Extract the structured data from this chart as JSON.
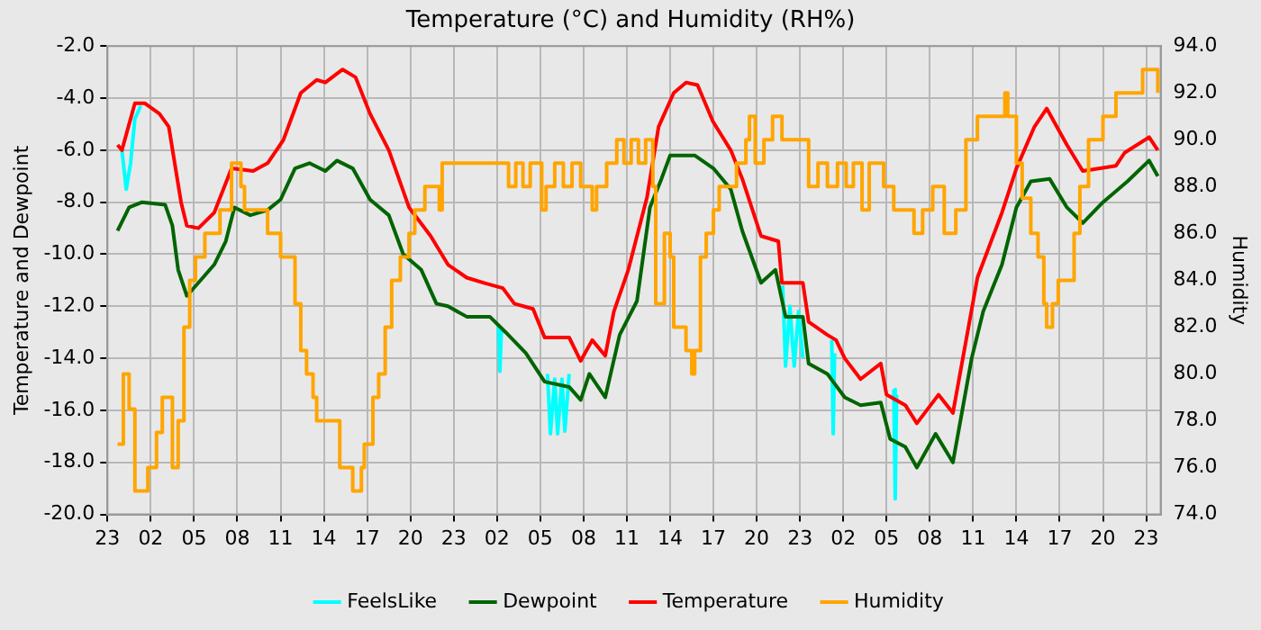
{
  "chart_data": {
    "type": "line",
    "title": "Temperature (°C) and Humidity (RH%)",
    "ylabel": "Temperature and Dewpoint",
    "y2label": "Humidity",
    "xlim": [
      "--01-01T23:00",
      "--01-05T00:00"
    ],
    "xticks": [
      {
        "value": "--01-01T23:00",
        "label": "23"
      },
      {
        "value": "--01-02T02:00",
        "label": "02"
      },
      {
        "value": "--01-02T05:00",
        "label": "05"
      },
      {
        "value": "--01-02T08:00",
        "label": "08"
      },
      {
        "value": "--01-02T11:00",
        "label": "11"
      },
      {
        "value": "--01-02T14:00",
        "label": "14"
      },
      {
        "value": "--01-02T17:00",
        "label": "17"
      },
      {
        "value": "--01-02T20:00",
        "label": "20"
      },
      {
        "value": "--01-02T23:00",
        "label": "23"
      },
      {
        "value": "--01-03T02:00",
        "label": "02"
      },
      {
        "value": "--01-03T05:00",
        "label": "05"
      },
      {
        "value": "--01-03T08:00",
        "label": "08"
      },
      {
        "value": "--01-03T11:00",
        "label": "11"
      },
      {
        "value": "--01-03T14:00",
        "label": "14"
      },
      {
        "value": "--01-03T17:00",
        "label": "17"
      },
      {
        "value": "--01-03T20:00",
        "label": "20"
      },
      {
        "value": "--01-03T23:00",
        "label": "23"
      },
      {
        "value": "--01-04T02:00",
        "label": "02"
      },
      {
        "value": "--01-04T05:00",
        "label": "05"
      },
      {
        "value": "--01-04T08:00",
        "label": "08"
      },
      {
        "value": "--01-04T11:00",
        "label": "11"
      },
      {
        "value": "--01-04T14:00",
        "label": "14"
      },
      {
        "value": "--01-04T17:00",
        "label": "17"
      },
      {
        "value": "--01-04T20:00",
        "label": "20"
      },
      {
        "value": "--01-04T23:00",
        "label": "23"
      }
    ],
    "ylim": [
      -20,
      -2
    ],
    "yticks": [
      {
        "value": -20,
        "label": "-20.0"
      },
      {
        "value": -18,
        "label": "-18.0"
      },
      {
        "value": -16,
        "label": "-16.0"
      },
      {
        "value": -14,
        "label": "-14.0"
      },
      {
        "value": -12,
        "label": "-12.0"
      },
      {
        "value": -10,
        "label": "-10.0"
      },
      {
        "value": -8,
        "label": "-8.0"
      },
      {
        "value": -6,
        "label": "-6.0"
      },
      {
        "value": -4,
        "label": "-4.0"
      },
      {
        "value": -2,
        "label": "-2.0"
      }
    ],
    "y2lim": [
      74,
      94
    ],
    "y2ticks": [
      {
        "value": 74,
        "label": "74.0"
      },
      {
        "value": 76,
        "label": "76.0"
      },
      {
        "value": 78,
        "label": "78.0"
      },
      {
        "value": 80,
        "label": "80.0"
      },
      {
        "value": 82,
        "label": "82.0"
      },
      {
        "value": 84,
        "label": "84.0"
      },
      {
        "value": 86,
        "label": "86.0"
      },
      {
        "value": 88,
        "label": "88.0"
      },
      {
        "value": 90,
        "label": "90.0"
      },
      {
        "value": 92,
        "label": "92.0"
      },
      {
        "value": 94,
        "label": "94.0"
      }
    ],
    "grid": true,
    "legend": "bottom",
    "marker": "none",
    "line_style": "solid",
    "series": [
      {
        "name": "FeelsLike",
        "type": "line",
        "color": "#00ffff",
        "x": [
          "--01-02T00:00",
          "--01-02T00:18",
          "--01-02T00:36",
          "--01-02T00:54",
          "--01-02T01:18",
          "--01-02T13:00",
          "--01-03T02:06",
          "--01-03T02:12",
          "--01-03T02:18",
          "--01-03T04:00",
          "--01-03T05:30",
          "--01-03T05:42",
          "--01-03T06:00",
          "--01-03T06:12",
          "--01-03T06:30",
          "--01-03T06:42",
          "--01-03T07:00",
          "--01-03T15:00",
          "--01-03T21:48",
          "--01-03T22:00",
          "--01-03T22:18",
          "--01-03T22:36",
          "--01-03T22:54",
          "--01-03T23:12",
          "--01-04T00:30",
          "--01-04T01:12",
          "--01-04T01:18",
          "--01-04T01:24",
          "--01-04T03:00",
          "--01-04T05:30",
          "--01-04T05:36",
          "--01-04T05:42"
        ],
        "values": [
          -6.0,
          -7.5,
          -6.5,
          -4.8,
          -4.3,
          null,
          -12.7,
          -14.5,
          -12.9,
          null,
          -14.6,
          -16.9,
          -14.8,
          -16.9,
          -14.8,
          -16.8,
          -14.6,
          null,
          -11.2,
          -14.3,
          -12.0,
          -14.3,
          -12.2,
          -14.0,
          null,
          -13.3,
          -16.9,
          -13.8,
          null,
          -15.2,
          -19.4,
          -15.4
        ]
      },
      {
        "name": "Dewpoint",
        "type": "line",
        "color": "#006400",
        "x": [
          "--01-01T23:42",
          "--01-02T00:30",
          "--01-02T01:24",
          "--01-02T03:00",
          "--01-02T03:30",
          "--01-02T03:54",
          "--01-02T04:30",
          "--01-02T05:18",
          "--01-02T06:24",
          "--01-02T07:12",
          "--01-02T07:48",
          "--01-02T08:54",
          "--01-02T10:06",
          "--01-02T11:00",
          "--01-02T12:00",
          "--01-02T13:00",
          "--01-02T14:06",
          "--01-02T14:54",
          "--01-02T16:00",
          "--01-02T17:12",
          "--01-02T18:30",
          "--01-02T19:30",
          "--01-02T20:45",
          "--01-02T21:48",
          "--01-02T22:36",
          "--01-02T23:54",
          "--01-03T01:30",
          "--01-03T02:36",
          "--01-03T04:00",
          "--01-03T05:18",
          "--01-03T07:00",
          "--01-03T07:48",
          "--01-03T08:24",
          "--01-03T09:30",
          "--01-03T10:30",
          "--01-03T11:42",
          "--01-03T12:36",
          "--01-03T13:24",
          "--01-03T14:00",
          "--01-03T15:42",
          "--01-03T17:00",
          "--01-03T18:12",
          "--01-03T19:00",
          "--01-03T20:18",
          "--01-03T21:18",
          "--01-03T22:00",
          "--01-03T23:12",
          "--01-03T23:36",
          "--01-04T00:54",
          "--01-04T01:18",
          "--01-04T02:06",
          "--01-04T03:12",
          "--01-04T04:36",
          "--01-04T05:15",
          "--01-04T06:18",
          "--01-04T07:06",
          "--01-04T08:24",
          "--01-04T09:36",
          "--01-04T10:54",
          "--01-04T11:42",
          "--01-04T13:00",
          "--01-04T14:00",
          "--01-04T15:00",
          "--01-04T16:18",
          "--01-04T17:30",
          "--01-04T18:36",
          "--01-04T20:00",
          "--01-04T21:42",
          "--01-04T23:12",
          "--01-04T23:48"
        ],
        "values": [
          -9.1,
          -8.2,
          -8.0,
          -8.1,
          -8.9,
          -10.6,
          -11.6,
          -11.1,
          -10.4,
          -9.5,
          -8.2,
          -8.5,
          -8.3,
          -7.9,
          -6.7,
          -6.5,
          -6.8,
          -6.4,
          -6.7,
          -7.9,
          -8.5,
          -10.0,
          -10.6,
          -11.9,
          -12.0,
          -12.4,
          -12.4,
          -13.0,
          -13.8,
          -14.9,
          -15.1,
          -15.6,
          -14.6,
          -15.5,
          -13.1,
          -11.8,
          -8.2,
          -7.1,
          -6.2,
          -6.2,
          -6.7,
          -7.5,
          -9.1,
          -11.1,
          -10.6,
          -12.4,
          -12.4,
          -14.2,
          -14.6,
          -14.9,
          -15.5,
          -15.8,
          -15.7,
          -17.1,
          -17.4,
          -18.2,
          -16.9,
          -18.0,
          -14.0,
          -12.2,
          -10.4,
          -8.2,
          -7.2,
          -7.1,
          -8.2,
          -8.8,
          -8.0,
          -7.2,
          -6.4,
          -7.0
        ]
      },
      {
        "name": "Temperature",
        "type": "line",
        "color": "#ff0000",
        "x": [
          "--01-01T23:42",
          "--01-02T00:00",
          "--01-02T00:54",
          "--01-02T01:36",
          "--01-02T02:36",
          "--01-02T03:15",
          "--01-02T04:06",
          "--01-02T04:30",
          "--01-02T05:18",
          "--01-02T06:24",
          "--01-02T07:36",
          "--01-02T09:06",
          "--01-02T10:06",
          "--01-02T11:12",
          "--01-02T12:24",
          "--01-02T13:30",
          "--01-02T14:06",
          "--01-02T15:18",
          "--01-02T16:12",
          "--01-02T17:12",
          "--01-02T18:30",
          "--01-02T19:54",
          "--01-02T21:24",
          "--01-02T22:36",
          "--01-02T23:54",
          "--01-03T01:06",
          "--01-03T02:24",
          "--01-03T03:12",
          "--01-03T04:30",
          "--01-03T05:18",
          "--01-03T07:00",
          "--01-03T07:48",
          "--01-03T08:36",
          "--01-03T09:30",
          "--01-03T10:06",
          "--01-03T11:06",
          "--01-03T12:24",
          "--01-03T13:12",
          "--01-03T14:15",
          "--01-03T15:06",
          "--01-03T15:54",
          "--01-03T16:58",
          "--01-03T18:12",
          "--01-03T19:00",
          "--01-03T20:18",
          "--01-03T21:30",
          "--01-03T21:45",
          "--01-03T23:12",
          "--01-03T23:36",
          "--01-04T00:54",
          "--01-04T01:30",
          "--01-04T02:06",
          "--01-04T03:12",
          "--01-04T04:36",
          "--01-04T05:00",
          "--01-04T06:18",
          "--01-04T07:06",
          "--01-04T08:36",
          "--01-04T09:36",
          "--01-04T11:18",
          "--01-04T13:00",
          "--01-04T14:00",
          "--01-04T15:15",
          "--01-04T16:06",
          "--01-04T17:30",
          "--01-04T18:36",
          "--01-04T20:54",
          "--01-04T21:30",
          "--01-04T23:12",
          "--01-04T23:48"
        ],
        "values": [
          -5.8,
          -6.0,
          -4.2,
          -4.2,
          -4.6,
          -5.1,
          -8.0,
          -8.9,
          -9.0,
          -8.4,
          -6.7,
          -6.8,
          -6.5,
          -5.6,
          -3.8,
          -3.3,
          -3.4,
          -2.9,
          -3.2,
          -4.6,
          -6.0,
          -8.2,
          -9.3,
          -10.4,
          -10.9,
          -11.1,
          -11.3,
          -11.9,
          -12.1,
          -13.2,
          -13.2,
          -14.1,
          -13.3,
          -13.9,
          -12.2,
          -10.6,
          -7.8,
          -5.1,
          -3.8,
          -3.4,
          -3.5,
          -4.9,
          -6.0,
          -7.1,
          -9.3,
          -9.5,
          -11.1,
          -11.1,
          -12.6,
          -13.1,
          -13.3,
          -14.0,
          -14.8,
          -14.2,
          -15.4,
          -15.8,
          -16.5,
          -15.4,
          -16.1,
          -10.9,
          -8.4,
          -6.7,
          -5.1,
          -4.4,
          -5.8,
          -6.8,
          -6.6,
          -6.1,
          -5.5,
          -6.0
        ]
      },
      {
        "name": "Humidity",
        "type": "step",
        "axis": "y2",
        "color": "#ffa500",
        "x": [
          "--01-01T23:42",
          "--01-02T00:06",
          "--01-02T00:30",
          "--01-02T00:54",
          "--01-02T01:48",
          "--01-02T02:24",
          "--01-02T02:48",
          "--01-02T03:30",
          "--01-02T03:54",
          "--01-02T04:18",
          "--01-02T04:42",
          "--01-02T05:06",
          "--01-02T05:45",
          "--01-02T06:48",
          "--01-02T07:36",
          "--01-02T08:15",
          "--01-02T08:30",
          "--01-02T10:06",
          "--01-02T11:00",
          "--01-02T12:00",
          "--01-02T12:24",
          "--01-02T12:48",
          "--01-02T13:15",
          "--01-02T13:30",
          "--01-02T15:06",
          "--01-02T16:00",
          "--01-02T16:36",
          "--01-02T16:48",
          "--01-02T17:24",
          "--01-02T17:48",
          "--01-02T18:15",
          "--01-02T18:42",
          "--01-02T19:18",
          "--01-02T19:54",
          "--01-02T20:18",
          "--01-02T21:00",
          "--01-02T22:00",
          "--01-02T22:12",
          "--01-03T02:48",
          "--01-03T03:18",
          "--01-03T03:48",
          "--01-03T04:18",
          "--01-03T05:06",
          "--01-03T05:24",
          "--01-03T06:00",
          "--01-03T06:36",
          "--01-03T07:12",
          "--01-03T07:48",
          "--01-03T08:36",
          "--01-03T08:54",
          "--01-03T09:36",
          "--01-03T10:18",
          "--01-03T10:48",
          "--01-03T11:18",
          "--01-03T11:48",
          "--01-03T12:18",
          "--01-03T12:48",
          "--01-03T13:00",
          "--01-03T13:36",
          "--01-03T14:00",
          "--01-03T14:15",
          "--01-03T15:06",
          "--01-03T15:30",
          "--01-03T15:42",
          "--01-03T16:06",
          "--01-03T16:30",
          "--01-03T17:00",
          "--01-03T17:24",
          "--01-03T18:36",
          "--01-03T19:15",
          "--01-03T19:30",
          "--01-03T19:54",
          "--01-03T20:30",
          "--01-03T21:06",
          "--01-03T21:45",
          "--01-03T23:36",
          "--01-04T00:15",
          "--01-04T00:54",
          "--01-04T01:36",
          "--01-04T02:12",
          "--01-04T02:42",
          "--01-04T03:18",
          "--01-04T03:48",
          "--01-04T04:48",
          "--01-04T05:30",
          "--01-04T06:54",
          "--01-04T07:30",
          "--01-04T08:12",
          "--01-04T09:00",
          "--01-04T09:48",
          "--01-04T10:30",
          "--01-04T11:18",
          "--01-04T13:12",
          "--01-04T13:24",
          "--01-04T14:00",
          "--01-04T14:24",
          "--01-04T15:00",
          "--01-04T15:30",
          "--01-04T15:54",
          "--01-04T16:06",
          "--01-04T16:30",
          "--01-04T16:54",
          "--01-04T18:00",
          "--01-04T18:24",
          "--01-04T19:00",
          "--01-04T20:00",
          "--01-04T20:54",
          "--01-04T22:45",
          "--01-04T23:48"
        ],
        "values": [
          77,
          80,
          78.5,
          75,
          76,
          77.5,
          79,
          76,
          78,
          82,
          84,
          85,
          86,
          87,
          89,
          88,
          87,
          86,
          85,
          83,
          81,
          80,
          79,
          78,
          76,
          75,
          76,
          77,
          79,
          80,
          82,
          84,
          85,
          86,
          87,
          88,
          87,
          89,
          88,
          89,
          88,
          89,
          87,
          88,
          89,
          88,
          89,
          88,
          87,
          88,
          89,
          90,
          89,
          90,
          89,
          90,
          88,
          83,
          86,
          85,
          82,
          81,
          80,
          81,
          85,
          86,
          87,
          88,
          89,
          90,
          91,
          89,
          90,
          91,
          90,
          88,
          89,
          88,
          89,
          88,
          89,
          87,
          89,
          88,
          87,
          86,
          87,
          88,
          86,
          87,
          90,
          91,
          92,
          91,
          89,
          87.5,
          86,
          85,
          83,
          82,
          83,
          84,
          86,
          88,
          90,
          91,
          92,
          93,
          92
        ]
      }
    ]
  }
}
